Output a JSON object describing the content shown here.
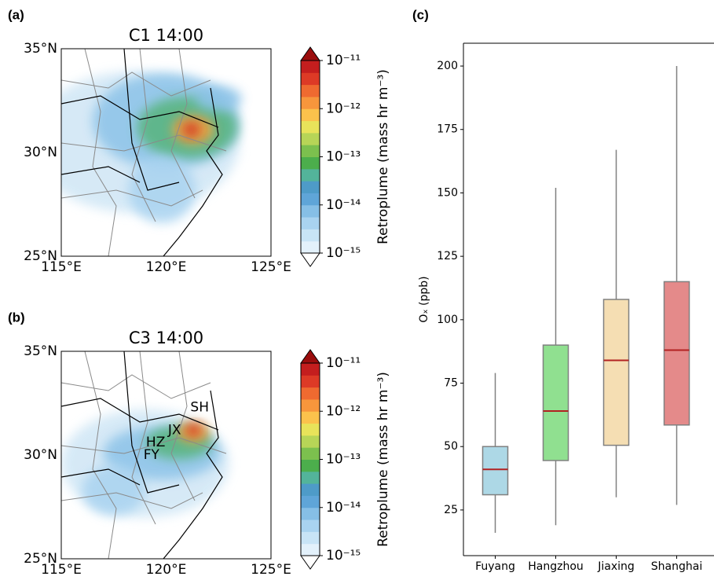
{
  "maps": [
    {
      "label": "(a)",
      "title": "C1 14:00",
      "latlim": [
        25,
        35
      ],
      "lonlim": [
        115,
        125
      ],
      "lat_ticks": [
        {
          "value": 35,
          "label": "35°N"
        },
        {
          "value": 30,
          "label": "30°N"
        },
        {
          "value": 25,
          "label": "25°N"
        }
      ],
      "lon_ticks": [
        {
          "value": 115,
          "label": "115°E"
        },
        {
          "value": 120,
          "label": "120°E"
        },
        {
          "value": 125,
          "label": "125°E"
        }
      ],
      "colorbar": {
        "label": "Retroplume (mass hr m⁻³)",
        "lim": [
          1e-15,
          1e-11
        ],
        "log": true,
        "ticks": [
          {
            "value": 1e-11,
            "label": "10⁻¹¹"
          },
          {
            "value": 1e-12,
            "label": "10⁻¹²"
          },
          {
            "value": 1e-13,
            "label": "10⁻¹³"
          },
          {
            "value": 1e-14,
            "label": "10⁻¹⁴"
          },
          {
            "value": 1e-15,
            "label": "10⁻¹⁵"
          }
        ]
      }
    },
    {
      "label": "(b)",
      "title": "C3 14:00",
      "latlim": [
        25,
        35
      ],
      "lonlim": [
        115,
        125
      ],
      "lat_ticks": [
        {
          "value": 35,
          "label": "35°N"
        },
        {
          "value": 30,
          "label": "30°N"
        },
        {
          "value": 25,
          "label": "25°N"
        }
      ],
      "lon_ticks": [
        {
          "value": 115,
          "label": "115°E"
        },
        {
          "value": 120,
          "label": "120°E"
        },
        {
          "value": 125,
          "label": "125°E"
        }
      ],
      "annotations": [
        "SH",
        "JX",
        "HZ",
        "FY"
      ],
      "colorbar": {
        "label": "Retroplume (mass hr m⁻³)",
        "lim": [
          1e-15,
          1e-11
        ],
        "log": true,
        "ticks": [
          {
            "value": 1e-11,
            "label": "10⁻¹¹"
          },
          {
            "value": 1e-12,
            "label": "10⁻¹²"
          },
          {
            "value": 1e-13,
            "label": "10⁻¹³"
          },
          {
            "value": 1e-14,
            "label": "10⁻¹⁴"
          },
          {
            "value": 1e-15,
            "label": "10⁻¹⁵"
          }
        ]
      }
    }
  ],
  "chart_data": {
    "type": "box",
    "label": "(c)",
    "y_label": "Oₓ (ppb)",
    "categories": [
      "Fuyang",
      "Hangzhou",
      "Jiaxing",
      "Shanghai"
    ],
    "colors": [
      "#add8e6",
      "#90e090",
      "#f5deb3",
      "#e48a8a"
    ],
    "median_color": "#b22222",
    "boxes": [
      {
        "whislo": 16,
        "q1": 31,
        "med": 41,
        "q3": 50,
        "whishi": 79
      },
      {
        "whislo": 19,
        "q1": 44.5,
        "med": 64,
        "q3": 90,
        "whishi": 152
      },
      {
        "whislo": 30,
        "q1": 50.5,
        "med": 84,
        "q3": 108,
        "whishi": 167
      },
      {
        "whislo": 27,
        "q1": 58.5,
        "med": 88,
        "q3": 115,
        "whishi": 200
      }
    ],
    "ylim": [
      7,
      209
    ],
    "yticks": [
      25,
      50,
      75,
      100,
      125,
      150,
      175,
      200
    ]
  }
}
